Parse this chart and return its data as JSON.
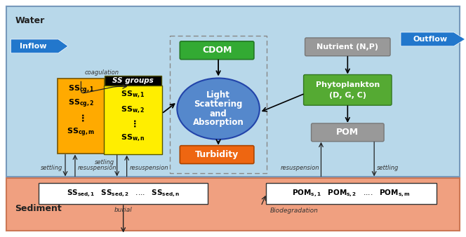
{
  "fig_width": 6.64,
  "fig_height": 3.38,
  "dpi": 100,
  "bg_water": "#b8d8ea",
  "bg_sediment": "#f0a080",
  "water_label": "Water",
  "sediment_label": "Sediment",
  "inflow_label": "Inflow",
  "outflow_label": "Outflow",
  "arrow_blue": "#2277cc",
  "cdom_color": "#33aa33",
  "cdom_label": "CDOM",
  "light_color": "#5588cc",
  "turbidity_color": "#ee6611",
  "turbidity_label": "Turbidity",
  "nutrient_color": "#999999",
  "nutrient_label": "Nutrient (N,P)",
  "phyto_color": "#55aa33",
  "phyto_label1": "Phytoplankton",
  "phyto_label2": "(D, G, C)",
  "pom_color": "#999999",
  "pom_label": "POM",
  "ss_groups_bg": "#ffee00",
  "ss_groups_label": "SS groups",
  "ss_cg_bg": "#ffaa00",
  "dashed_box_color": "#888888",
  "arrow_color": "#222222"
}
